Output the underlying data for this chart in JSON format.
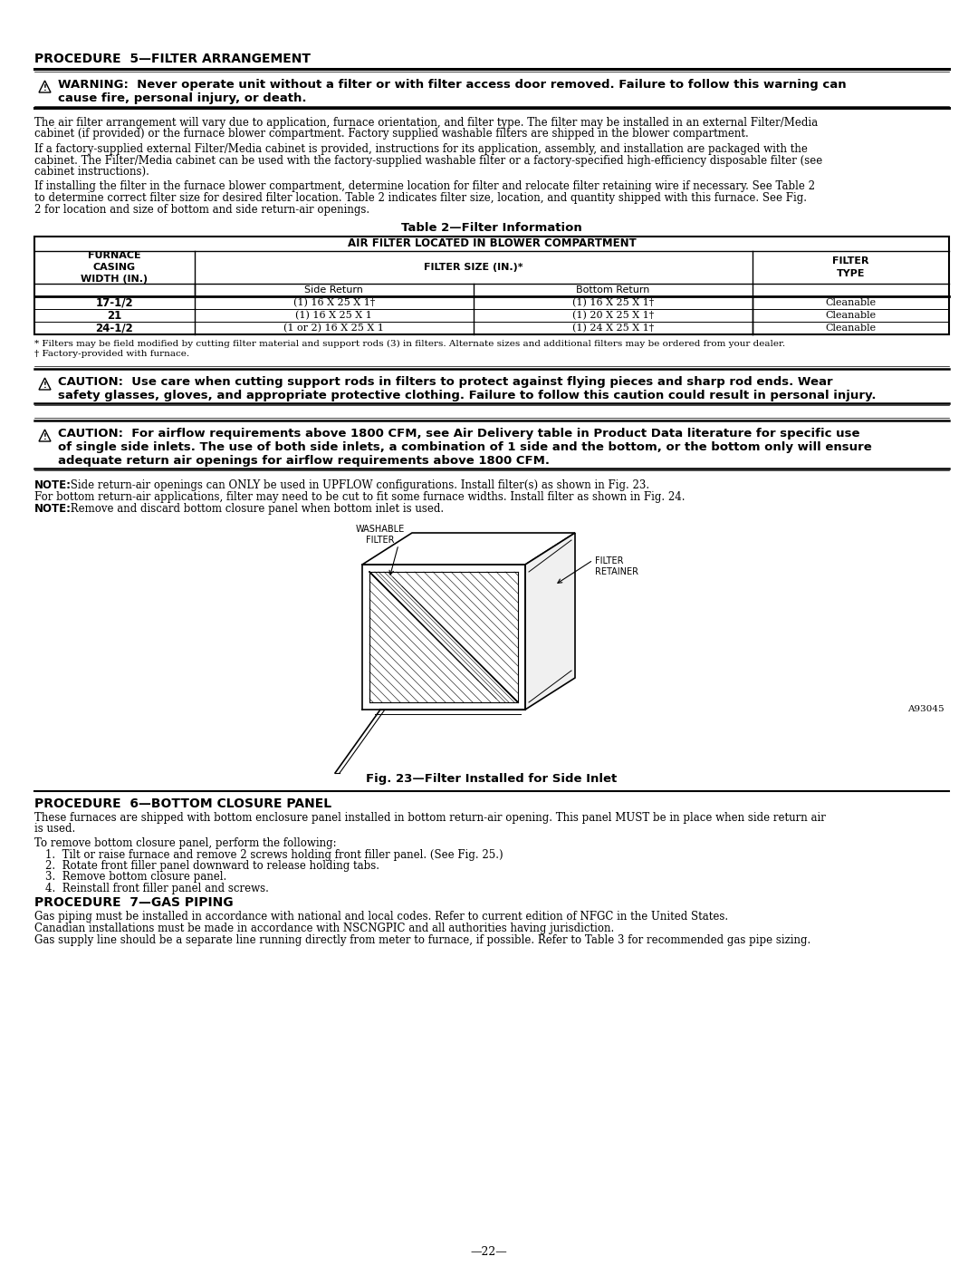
{
  "bg_color": "#ffffff",
  "page_number": "—22—",
  "proc5_title": "PROCEDURE  5—FILTER ARRANGEMENT",
  "warning_line1": "WARNING:  Never operate unit without a filter or with filter access door removed. Failure to follow this warning can",
  "warning_line2": "cause fire, personal injury, or death.",
  "para1_line1": "The air filter arrangement will vary due to application, furnace orientation, and filter type. The filter may be installed in an external Filter/Media",
  "para1_line2": "cabinet (if provided) or the furnace blower compartment. Factory supplied washable filters are shipped in the blower compartment.",
  "para2_line1": "If a factory-supplied external Filter/Media cabinet is provided, instructions for its application, assembly, and installation are packaged with the",
  "para2_line2": "cabinet. The Filter/Media cabinet can be used with the factory-supplied washable filter or a factory-specified high-efficiency disposable filter (see",
  "para2_line3": "cabinet instructions).",
  "para3_line1": "If installing the filter in the furnace blower compartment, determine location for filter and relocate filter retaining wire if necessary. See Table 2",
  "para3_line2": "to determine correct filter size for desired filter location. Table 2 indicates filter size, location, and quantity shipped with this furnace. See Fig.",
  "para3_line3": "2 for location and size of bottom and side return-air openings.",
  "table_title": "Table 2—Filter Information",
  "table_header_full": "AIR FILTER LOCATED IN BLOWER COMPARTMENT",
  "col1_hdr": "FURNACE\nCASING\nWIDTH (IN.)",
  "col2_hdr": "FILTER SIZE (IN.)*",
  "col2a_hdr": "Side Return",
  "col2b_hdr": "Bottom Return",
  "col3_hdr": "FILTER\nTYPE",
  "row1": [
    "17-1/2",
    "(1) 16 X 25 X 1†",
    "(1) 16 X 25 X 1†",
    "Cleanable"
  ],
  "row2": [
    "21",
    "(1) 16 X 25 X 1",
    "(1) 20 X 25 X 1†",
    "Cleanable"
  ],
  "row3": [
    "24-1/2",
    "(1 or 2) 16 X 25 X 1",
    "(1) 24 X 25 X 1†",
    "Cleanable"
  ],
  "fn1": "* Filters may be field modified by cutting filter material and support rods (3) in filters. Alternate sizes and additional filters may be ordered from your dealer.",
  "fn2": "† Factory-provided with furnace.",
  "c1l1": "CAUTION:  Use care when cutting support rods in filters to protect against flying pieces and sharp rod ends. Wear",
  "c1l2": "safety glasses, gloves, and appropriate protective clothing. Failure to follow this caution could result in personal injury.",
  "c2l1": "CAUTION:  For airflow requirements above 1800 CFM, see Air Delivery table in Product Data literature for specific use",
  "c2l2": "of single side inlets. The use of both side inlets, a combination of 1 side and the bottom, or the bottom only will ensure",
  "c2l3": "adequate return air openings for airflow requirements above 1800 CFM.",
  "note1b": "NOTE:",
  "note1t": " Side return-air openings can ONLY be used in UPFLOW configurations. Install filter(s) as shown in Fig. 23.",
  "note2t": "For bottom return-air applications, filter may need to be cut to fit some furnace widths. Install filter as shown in Fig. 24.",
  "note3b": "NOTE:",
  "note3t": " Remove and discard bottom closure panel when bottom inlet is used.",
  "fig_label": "A93045",
  "fig_caption": "Fig. 23—Filter Installed for Side Inlet",
  "proc6_title": "PROCEDURE  6—BOTTOM CLOSURE PANEL",
  "proc6_p1l1": "These furnaces are shipped with bottom enclosure panel installed in bottom return-air opening. This panel MUST be in place when side return air",
  "proc6_p1l2": "is used.",
  "proc6_p2": "To remove bottom closure panel, perform the following:",
  "proc6_steps": [
    "1.  Tilt or raise furnace and remove 2 screws holding front filler panel. (See Fig. 25.)",
    "2.  Rotate front filler panel downward to release holding tabs.",
    "3.  Remove bottom closure panel.",
    "4.  Reinstall front filler panel and screws."
  ],
  "proc7_title": "PROCEDURE  7—GAS PIPING",
  "proc7_p1": "Gas piping must be installed in accordance with national and local codes. Refer to current edition of NFGC in the United States.",
  "proc7_p2": "Canadian installations must be made in accordance with NSCNGPIC and all authorities having jurisdiction.",
  "proc7_p3": "Gas supply line should be a separate line running directly from meter to furnace, if possible. Refer to Table 3 for recommended gas pipe sizing."
}
